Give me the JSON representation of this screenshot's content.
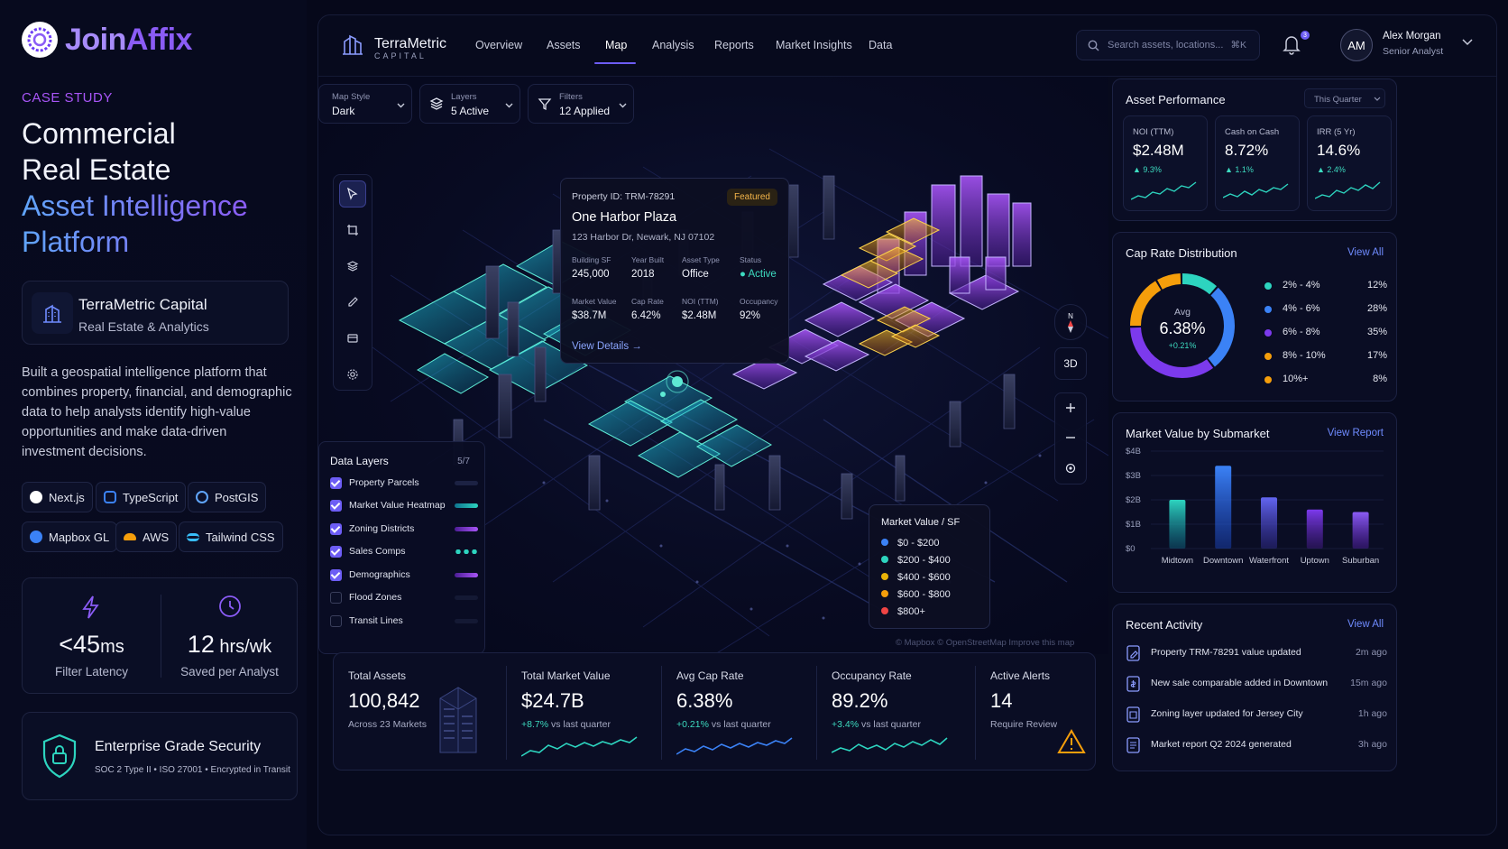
{
  "left": {
    "logo_prefix": "Join",
    "logo_suffix": "Affix",
    "case_label": "CASE STUDY",
    "headline": [
      "Commercial",
      "Real Estate",
      "Asset Intelligence",
      "Platform"
    ],
    "company_name": "TerraMetric Capital",
    "company_sub": "Real Estate & Analytics",
    "description": "Built a geospatial intelligence platform that combines property, financial, and demographic data to help analysts identify high-value opportunities and make data-driven investment decisions.",
    "tech": [
      "Next.js",
      "TypeScript",
      "PostGIS",
      "Mapbox GL",
      "AWS",
      "Tailwind CSS"
    ],
    "stat1_value": "<45",
    "stat1_unit": "ms",
    "stat1_label": "Filter Latency",
    "stat2_value": "12",
    "stat2_unit": " hrs/wk",
    "stat2_label": "Saved per Analyst",
    "security_title": "Enterprise Grade Security",
    "security_sub": "SOC 2 Type II  •  ISO 27001  •  Encrypted in Transit"
  },
  "header": {
    "brand": "TerraMetric",
    "brand_sub": "CAPITAL",
    "nav": [
      "Overview",
      "Assets",
      "Map",
      "Analysis",
      "Reports",
      "Market Insights",
      "Data"
    ],
    "active_nav": "Map",
    "search_placeholder": "Search assets, locations...",
    "search_shortcut": "⌘K",
    "notifications": "3",
    "avatar": "AM",
    "user_name": "Alex Morgan",
    "user_role": "Senior Analyst"
  },
  "map": {
    "style_label": "Map Style",
    "style_value": "Dark",
    "layers_label": "Layers",
    "layers_value": "5 Active",
    "filters_label": "Filters",
    "filters_value": "12 Applied",
    "compass_n": "N",
    "btn_3d": "3D",
    "attribution": "© Mapbox  © OpenStreetMap  Improve this map"
  },
  "popup": {
    "property_id": "Property ID: TRM-78291",
    "badge": "Featured",
    "name": "One Harbor Plaza",
    "address": "123 Harbor Dr, Newark, NJ 07102",
    "fields": [
      {
        "label": "Building SF",
        "value": "245,000"
      },
      {
        "label": "Year Built",
        "value": "2018"
      },
      {
        "label": "Asset Type",
        "value": "Office"
      },
      {
        "label": "Status",
        "value": "Active"
      },
      {
        "label": "Market Value",
        "value": "$38.7M"
      },
      {
        "label": "Cap Rate",
        "value": "6.42%"
      },
      {
        "label": "NOI (TTM)",
        "value": "$2.48M"
      },
      {
        "label": "Occupancy",
        "value": "92%"
      }
    ],
    "link": "View Details"
  },
  "data_layers": {
    "title": "Data Layers",
    "count": "5/7",
    "items": [
      {
        "name": "Property Parcels",
        "on": true
      },
      {
        "name": "Market Value Heatmap",
        "on": true
      },
      {
        "name": "Zoning Districts",
        "on": true
      },
      {
        "name": "Sales Comps",
        "on": true
      },
      {
        "name": "Demographics",
        "on": true
      },
      {
        "name": "Flood Zones",
        "on": false
      },
      {
        "name": "Transit Lines",
        "on": false
      }
    ]
  },
  "legend": {
    "title": "Market Value / SF",
    "items": [
      {
        "label": "$0 - $200",
        "color": "#3b82f6"
      },
      {
        "label": "$200 - $400",
        "color": "#2dd4bf"
      },
      {
        "label": "$400 - $600",
        "color": "#eab308"
      },
      {
        "label": "$600 - $800",
        "color": "#f59e0b"
      },
      {
        "label": "$800+",
        "color": "#ef4444"
      }
    ]
  },
  "kpis": [
    {
      "label": "Total Assets",
      "value": "100,842",
      "sub_plain": "Across 23 Markets",
      "delta": "",
      "rest": ""
    },
    {
      "label": "Total Market Value",
      "value": "$24.7B",
      "sub_plain": "",
      "delta": "+8.7%",
      "rest": " vs last quarter"
    },
    {
      "label": "Avg Cap Rate",
      "value": "6.38%",
      "sub_plain": "",
      "delta": "+0.21%",
      "rest": " vs last quarter"
    },
    {
      "label": "Occupancy Rate",
      "value": "89.2%",
      "sub_plain": "",
      "delta": "+3.4%",
      "rest": " vs last quarter"
    },
    {
      "label": "Active Alerts",
      "value": "14",
      "sub_plain": "Require Review",
      "delta": "",
      "rest": ""
    }
  ],
  "performance": {
    "title": "Asset Performance",
    "period": "This Quarter",
    "items": [
      {
        "label": "NOI (TTM)",
        "value": "$2.48M",
        "delta": "▲ 9.3%"
      },
      {
        "label": "Cash on Cash",
        "value": "8.72%",
        "delta": "▲ 1.1%"
      },
      {
        "label": "IRR (5 Yr)",
        "value": "14.6%",
        "delta": "▲ 2.4%"
      }
    ]
  },
  "cap_rate": {
    "title": "Cap Rate Distribution",
    "link": "View All",
    "avg_label": "Avg",
    "avg_value": "6.38%",
    "avg_delta": "+0.21%",
    "items": [
      {
        "range": "2% - 4%",
        "pct": "12%",
        "share": 12,
        "color": "#2dd4bf"
      },
      {
        "range": "4% - 6%",
        "pct": "28%",
        "share": 28,
        "color": "#3b82f6"
      },
      {
        "range": "6% - 8%",
        "pct": "35%",
        "share": 35,
        "color": "#7c3aed"
      },
      {
        "range": "8% - 10%",
        "pct": "17%",
        "share": 17,
        "color": "#f59e0b"
      },
      {
        "range": "10%+",
        "pct": "8%",
        "share": 8,
        "color": "#f59e0b"
      }
    ]
  },
  "chart_data": {
    "type": "bar",
    "title": "Market Value by Submarket",
    "categories": [
      "Midtown",
      "Downtown",
      "Waterfront",
      "Uptown",
      "Suburban"
    ],
    "values": [
      2.0,
      3.4,
      2.1,
      1.6,
      1.5
    ],
    "ylabel": "",
    "xlabel": "",
    "yticks": [
      "$0",
      "$1B",
      "$2B",
      "$3B",
      "$4B"
    ],
    "ylim": [
      0,
      4
    ],
    "link": "View Report"
  },
  "activity": {
    "title": "Recent Activity",
    "link": "View All",
    "items": [
      {
        "text": "Property TRM-78291 value updated",
        "time": "2m ago"
      },
      {
        "text": "New sale comparable added in Downtown",
        "time": "15m ago"
      },
      {
        "text": "Zoning layer updated for Jersey City",
        "time": "1h ago"
      },
      {
        "text": "Market report Q2 2024 generated",
        "time": "3h ago"
      }
    ]
  }
}
